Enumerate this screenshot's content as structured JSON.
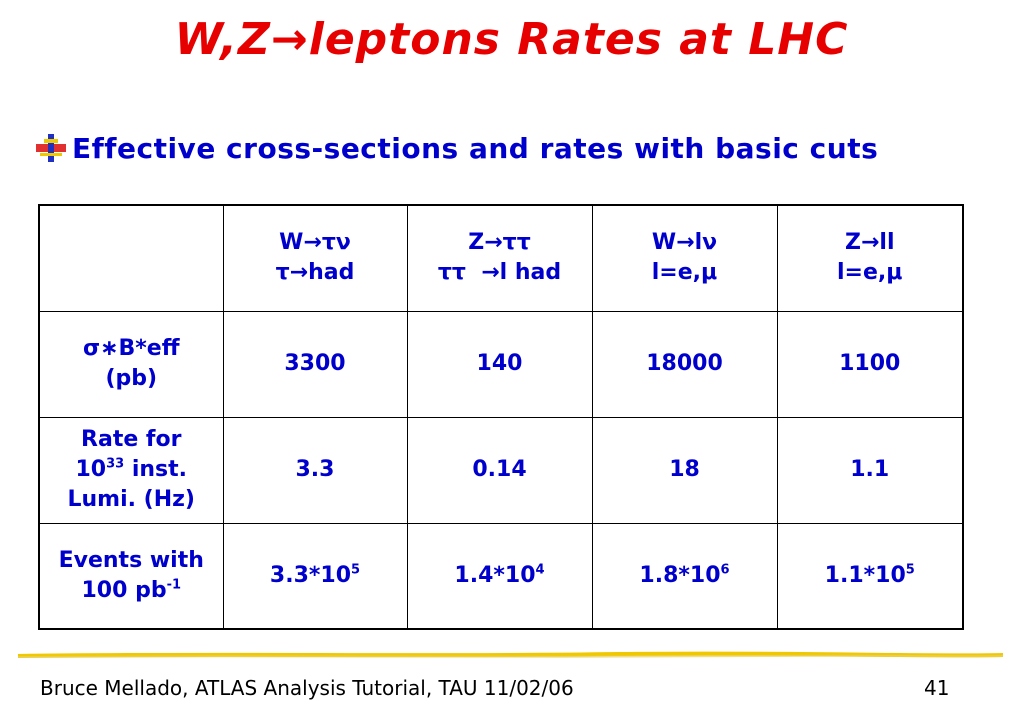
{
  "title": "W,Z→leptons Rates at LHC",
  "bullet": "Effective cross-sections and rates with basic cuts",
  "table": {
    "headers": [
      {
        "l1": "W→τν",
        "l2": "τ→had"
      },
      {
        "l1": "Z→ττ",
        "l2": "ττ  →l had"
      },
      {
        "l1": "W→lν",
        "l2": "l=e,μ"
      },
      {
        "l1": "Z→ll",
        "l2": "l=e,μ"
      }
    ],
    "rows": [
      {
        "label_l1": "σ∗B*eff",
        "label_l2": "(pb)",
        "values": [
          "3300",
          "140",
          "18000",
          "1100"
        ]
      },
      {
        "label_l1": "Rate for",
        "label_l2_base": "10",
        "label_l2_sup": "33",
        "label_l2_rest": " inst.",
        "label_l3": "Lumi. (Hz)",
        "values": [
          "3.3",
          "0.14",
          "18",
          "1.1"
        ]
      },
      {
        "label_l1": "Events with",
        "label_l2_base": "100 pb",
        "label_l2_sup": "-1",
        "values": [
          {
            "base": "3.3*10",
            "exp": "5"
          },
          {
            "base": "1.4*10",
            "exp": "4"
          },
          {
            "base": "1.8*10",
            "exp": "6"
          },
          {
            "base": "1.1*10",
            "exp": "5"
          }
        ]
      }
    ]
  },
  "footer": "Bruce Mellado, ATLAS Analysis Tutorial, TAU 11/02/06",
  "page_number": "41",
  "colors": {
    "title": "#e60000",
    "text": "#0000cc",
    "rule": "#f0c800"
  }
}
